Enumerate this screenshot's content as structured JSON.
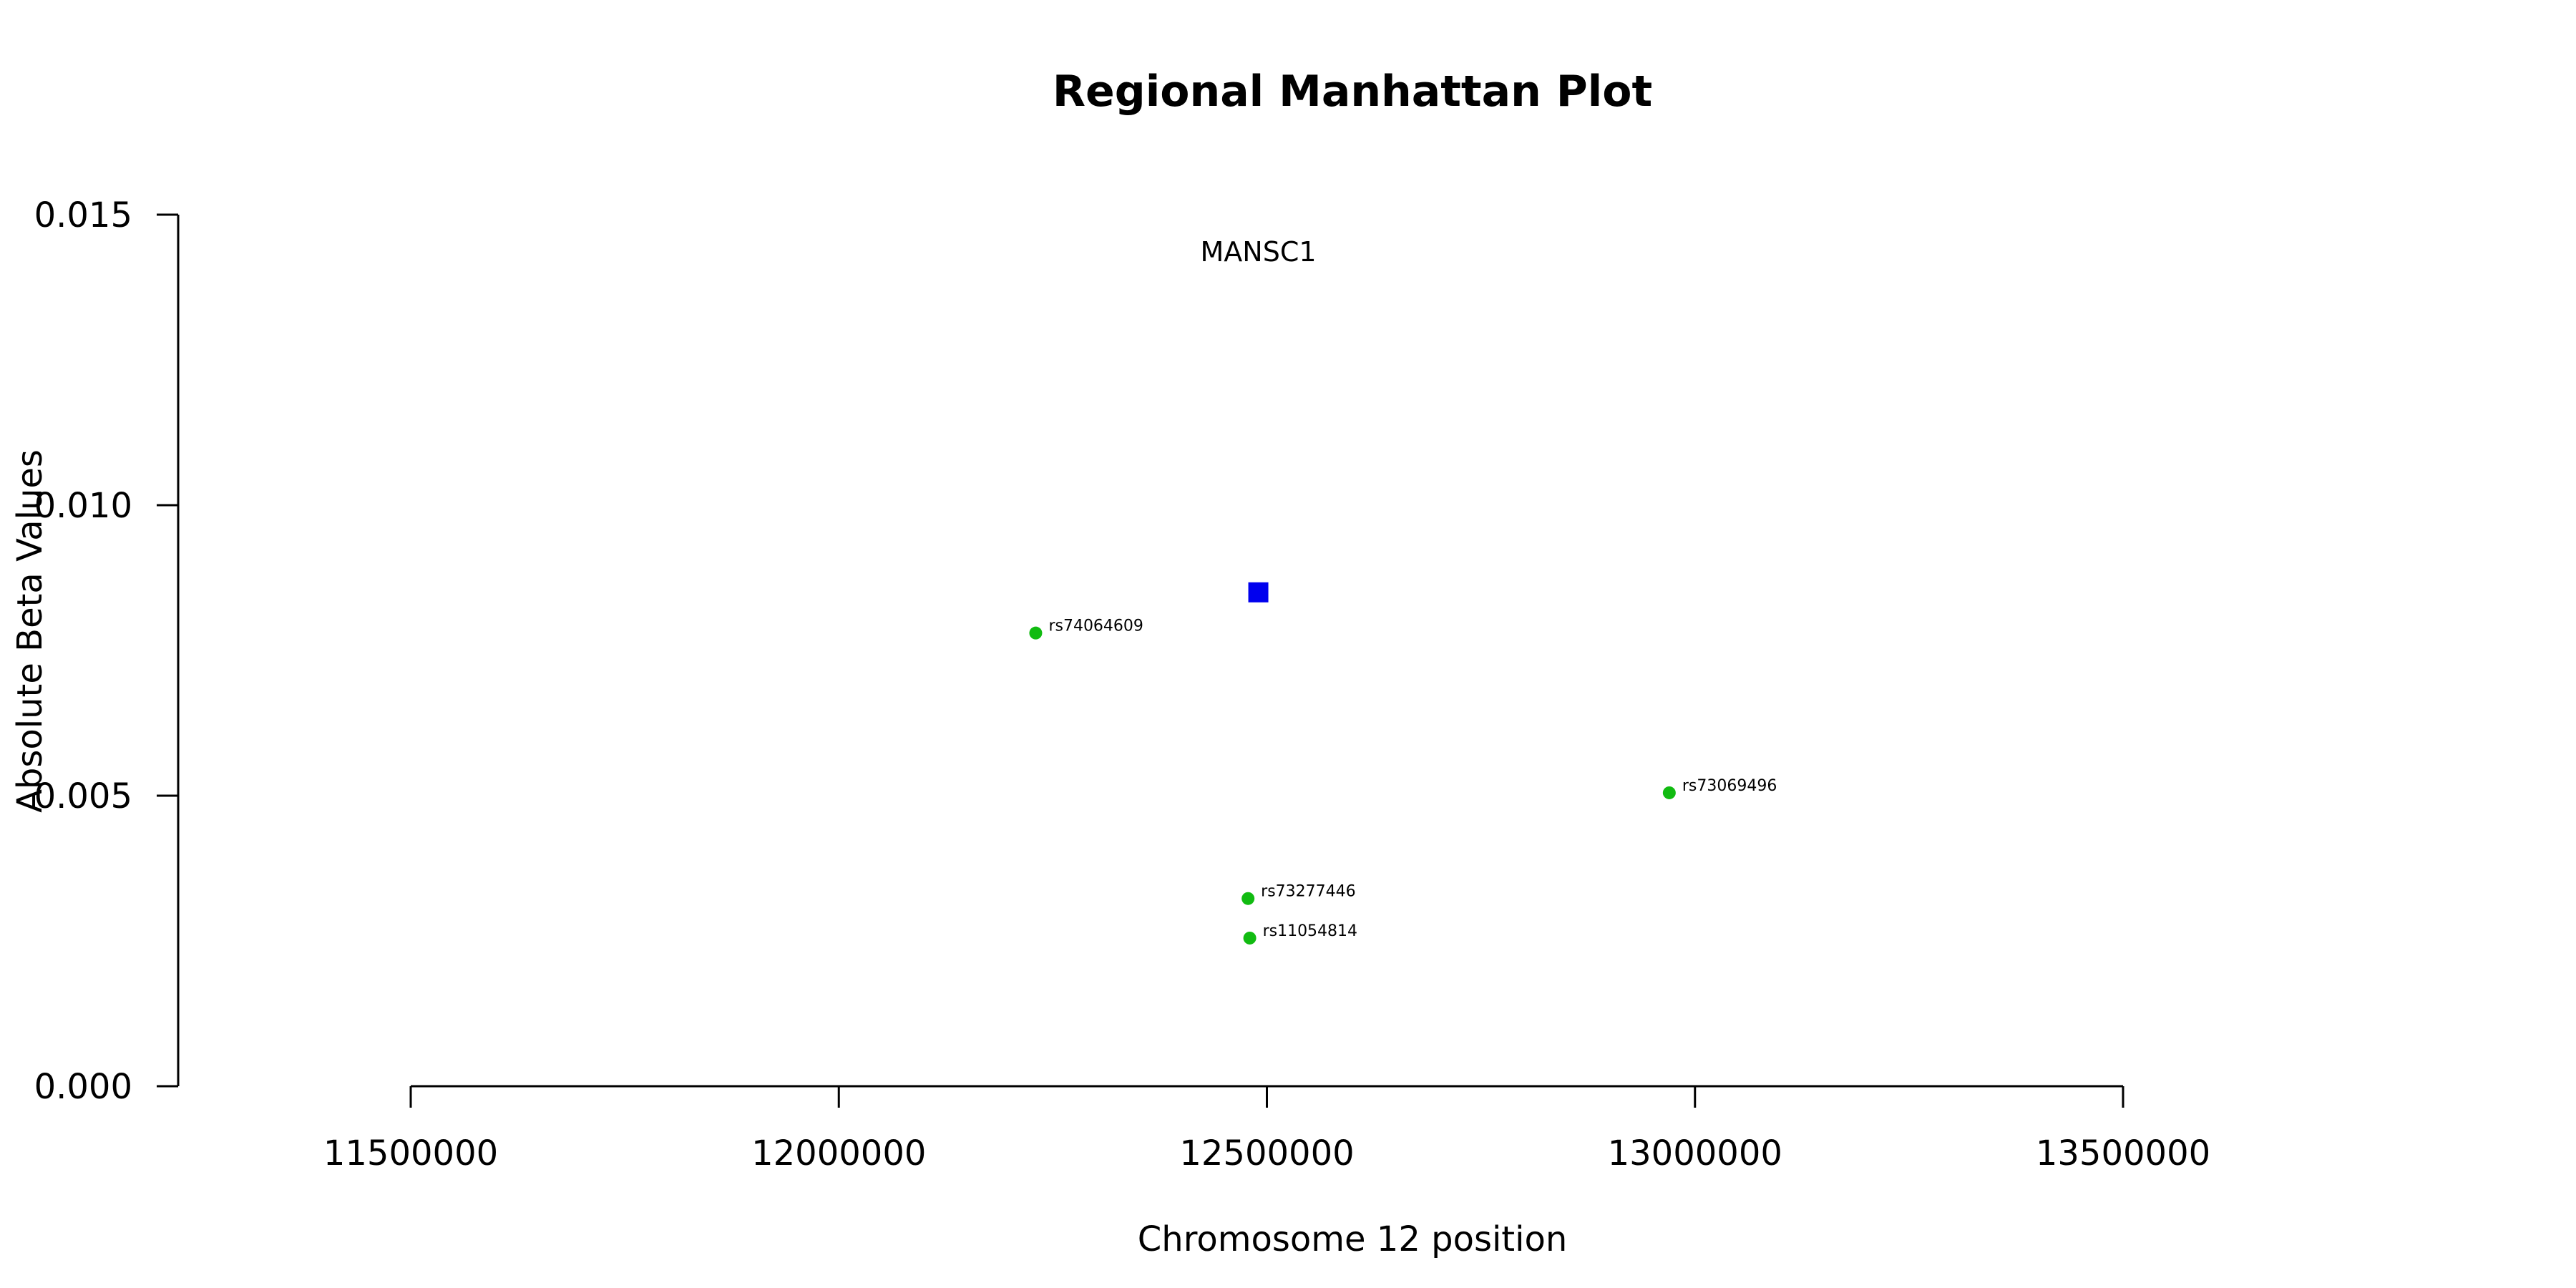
{
  "chart_data": {
    "type": "scatter",
    "title": "Regional Manhattan Plot",
    "xlabel": "Chromosome 12 position",
    "ylabel": "Absolute Beta Values",
    "xlim": [
      11500000,
      13500000
    ],
    "ylim": [
      0,
      0.015
    ],
    "x_ticks": [
      11500000,
      12000000,
      12500000,
      13000000,
      13500000
    ],
    "x_tick_labels": [
      "11500000",
      "12000000",
      "12500000",
      "13000000",
      "13500000"
    ],
    "y_ticks": [
      0,
      0.005,
      0.01,
      0.015
    ],
    "y_tick_labels": [
      "0.000",
      "0.005",
      "0.010",
      "0.015"
    ],
    "grid": false,
    "gene": {
      "name": "MANSC1",
      "x": 12490000,
      "y": 0.0085,
      "label_y": 0.0142,
      "color": "#0000ee",
      "marker": "square"
    },
    "snps": [
      {
        "name": "rs74064609",
        "x": 12230000,
        "y": 0.0078
      },
      {
        "name": "rs73069496",
        "x": 12970000,
        "y": 0.00505
      },
      {
        "name": "rs73277446",
        "x": 12478000,
        "y": 0.00323
      },
      {
        "name": "rs11054814",
        "x": 12480000,
        "y": 0.00255
      }
    ],
    "snp_color": "#11bb11"
  }
}
